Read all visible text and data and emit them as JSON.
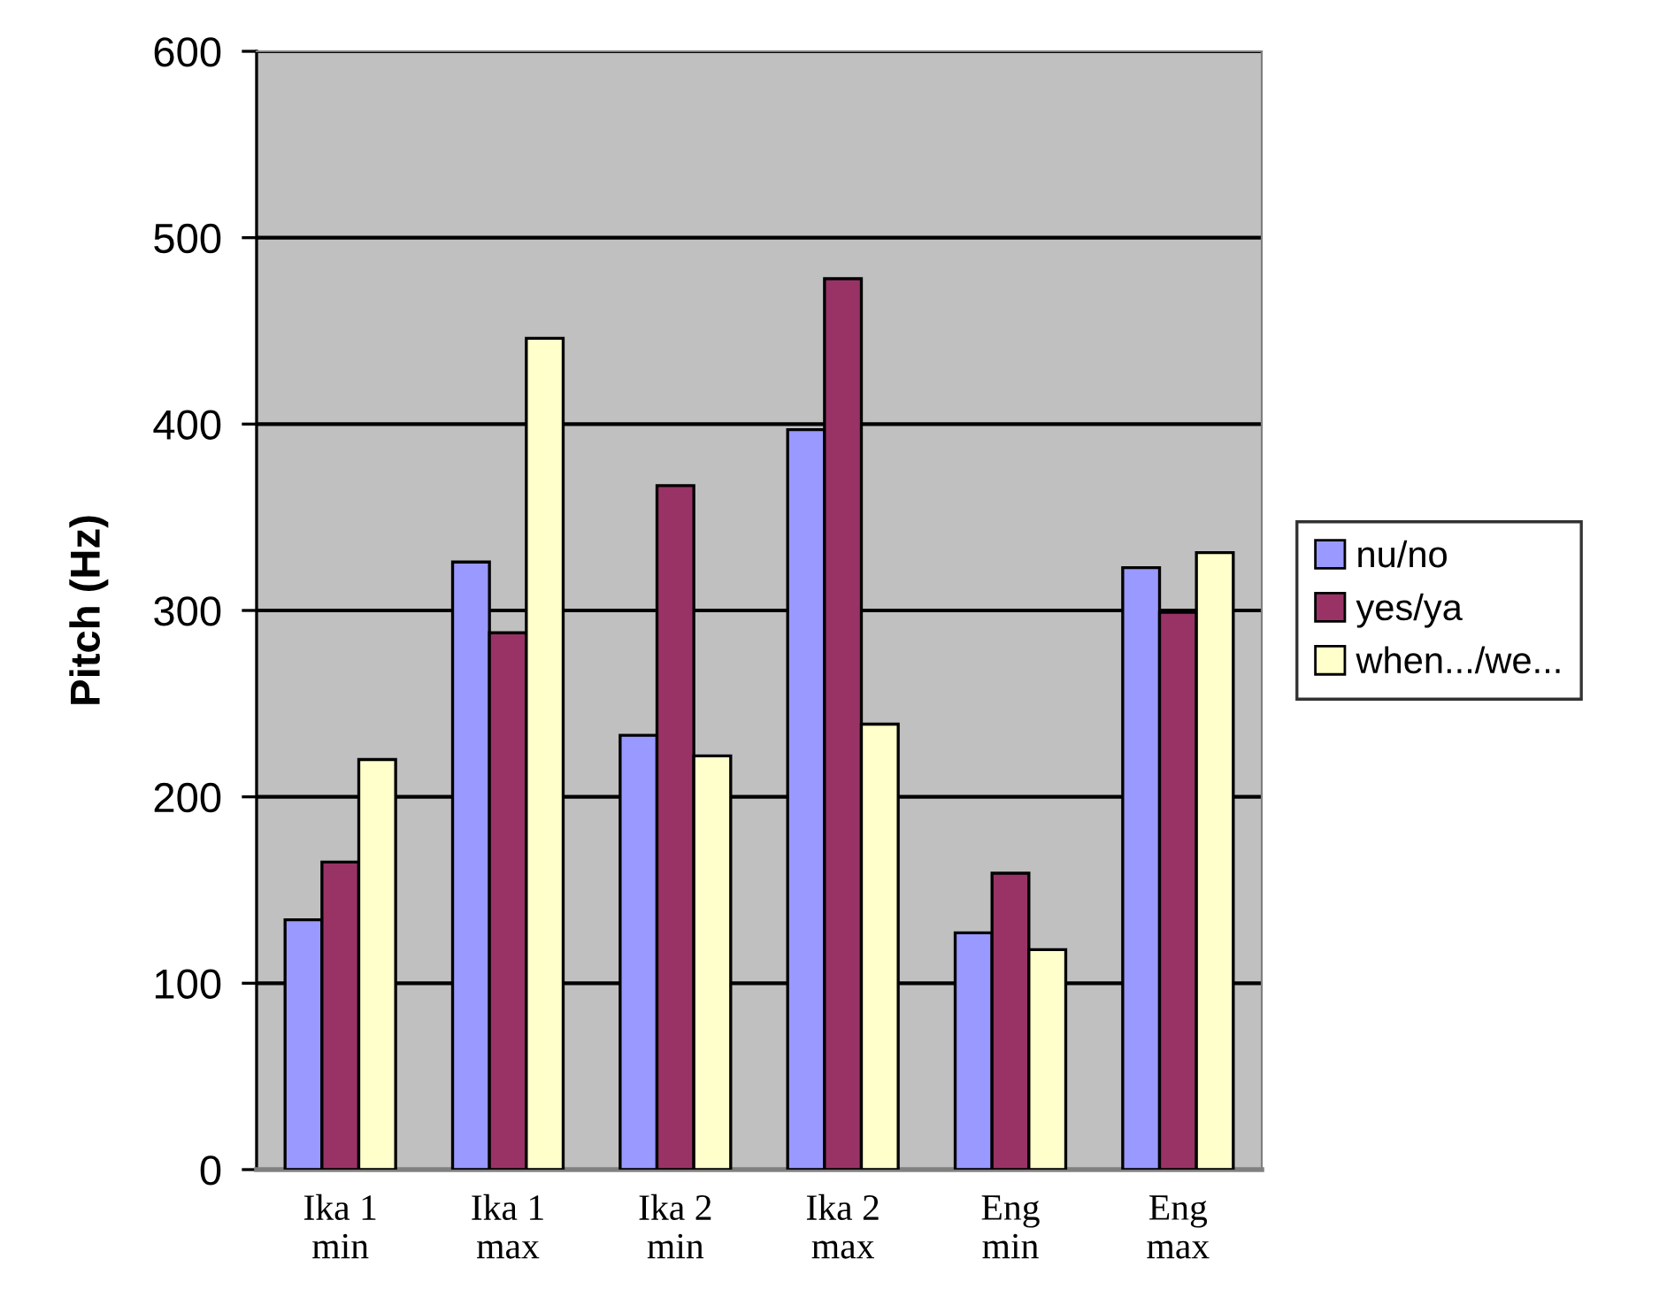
{
  "chart_data": {
    "type": "bar",
    "ylabel": "Pitch (Hz)",
    "categories": [
      "Ika 1\nmin",
      "Ika 1\nmax",
      "Ika 2\nmin",
      "Ika 2\nmax",
      "Eng\nmin",
      "Eng\nmax"
    ],
    "series": [
      {
        "name": "nu/no",
        "color": "#9999ff",
        "values": [
          134,
          326,
          233,
          397,
          127,
          323
        ]
      },
      {
        "name": "yes/ya",
        "color": "#993366",
        "values": [
          165,
          288,
          367,
          478,
          159,
          299
        ]
      },
      {
        "name": "when.../we...",
        "color": "#ffffcc",
        "values": [
          220,
          446,
          222,
          239,
          118,
          331
        ]
      }
    ],
    "ylim": [
      0,
      600
    ],
    "yticks": [
      0,
      100,
      200,
      300,
      400,
      500,
      600
    ],
    "grid": "y",
    "legend": "right"
  }
}
